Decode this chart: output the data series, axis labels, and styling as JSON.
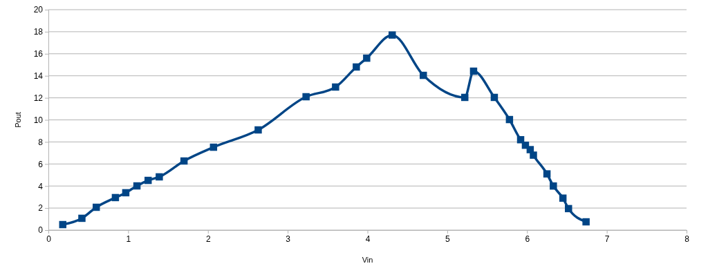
{
  "chart_data": {
    "type": "line",
    "xlabel": "Vin",
    "ylabel": "Pout",
    "xlim": [
      0,
      8
    ],
    "xticks": [
      0,
      1,
      2,
      3,
      4,
      5,
      6,
      7,
      8
    ],
    "ylim": [
      0,
      20
    ],
    "yticks": [
      0,
      2,
      4,
      6,
      8,
      10,
      12,
      14,
      16,
      18,
      20
    ],
    "grid": "y",
    "marker": "square",
    "line_style": "solid",
    "series": [
      {
        "color": "#004586",
        "x": [
          0.18,
          0.42,
          0.6,
          0.84,
          0.97,
          1.11,
          1.25,
          1.39,
          1.7,
          2.07,
          2.63,
          3.23,
          3.6,
          3.86,
          3.99,
          4.31,
          4.7,
          5.22,
          5.33,
          5.59,
          5.78,
          5.92,
          5.98,
          6.04,
          6.08,
          6.25,
          6.33,
          6.45,
          6.52,
          6.74
        ],
        "values": [
          0.5,
          1.07,
          2.07,
          2.95,
          3.39,
          4.01,
          4.51,
          4.83,
          6.27,
          7.52,
          9.09,
          12.1,
          12.98,
          14.8,
          15.6,
          17.7,
          14.04,
          12.04,
          14.42,
          12.04,
          10.03,
          8.2,
          7.7,
          7.3,
          6.8,
          5.1,
          4.0,
          2.9,
          1.95,
          0.75
        ]
      }
    ]
  }
}
